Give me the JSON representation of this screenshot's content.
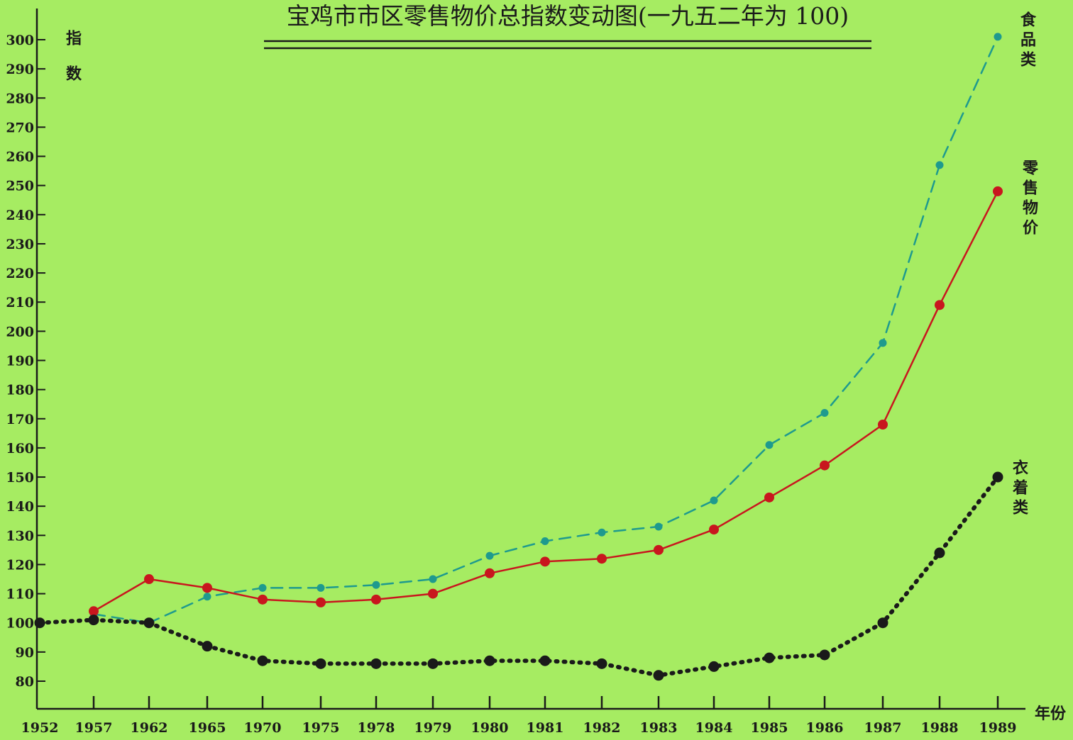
{
  "chart_data": {
    "type": "line",
    "title": "宝鸡市市区零售物价总指数变动图(一九五二年为 100)",
    "ylabel": "指数",
    "xlabel": "年份",
    "x": [
      "1952",
      "1957",
      "1962",
      "1965",
      "1970",
      "1975",
      "1978",
      "1979",
      "1980",
      "1981",
      "1982",
      "1983",
      "1984",
      "1985",
      "1986",
      "1987",
      "1988",
      "1989"
    ],
    "yticks": [
      80,
      90,
      100,
      110,
      120,
      130,
      140,
      150,
      160,
      170,
      180,
      190,
      200,
      210,
      220,
      230,
      240,
      250,
      260,
      270,
      280,
      290,
      300
    ],
    "ylim": [
      70,
      310
    ],
    "grid": false,
    "colors": {
      "background": "#a6ec62",
      "food": "#1e9a8e",
      "retail": "#c8161e",
      "clothing": "#1a1a1a"
    },
    "series": [
      {
        "name": "食品类",
        "style": "dashed",
        "key": "food",
        "values": [
          null,
          103,
          100,
          109,
          112,
          112,
          113,
          115,
          123,
          128,
          131,
          133,
          142,
          161,
          172,
          196,
          257,
          301
        ]
      },
      {
        "name": "零售物价",
        "style": "solid",
        "key": "retail",
        "values": [
          null,
          104,
          115,
          112,
          108,
          107,
          108,
          110,
          117,
          121,
          122,
          125,
          132,
          143,
          154,
          168,
          209,
          248
        ]
      },
      {
        "name": "衣着类",
        "style": "dotted",
        "key": "clothing",
        "values": [
          100,
          101,
          100,
          92,
          87,
          86,
          86,
          86,
          87,
          87,
          86,
          82,
          85,
          88,
          89,
          100,
          124,
          150
        ]
      }
    ]
  }
}
